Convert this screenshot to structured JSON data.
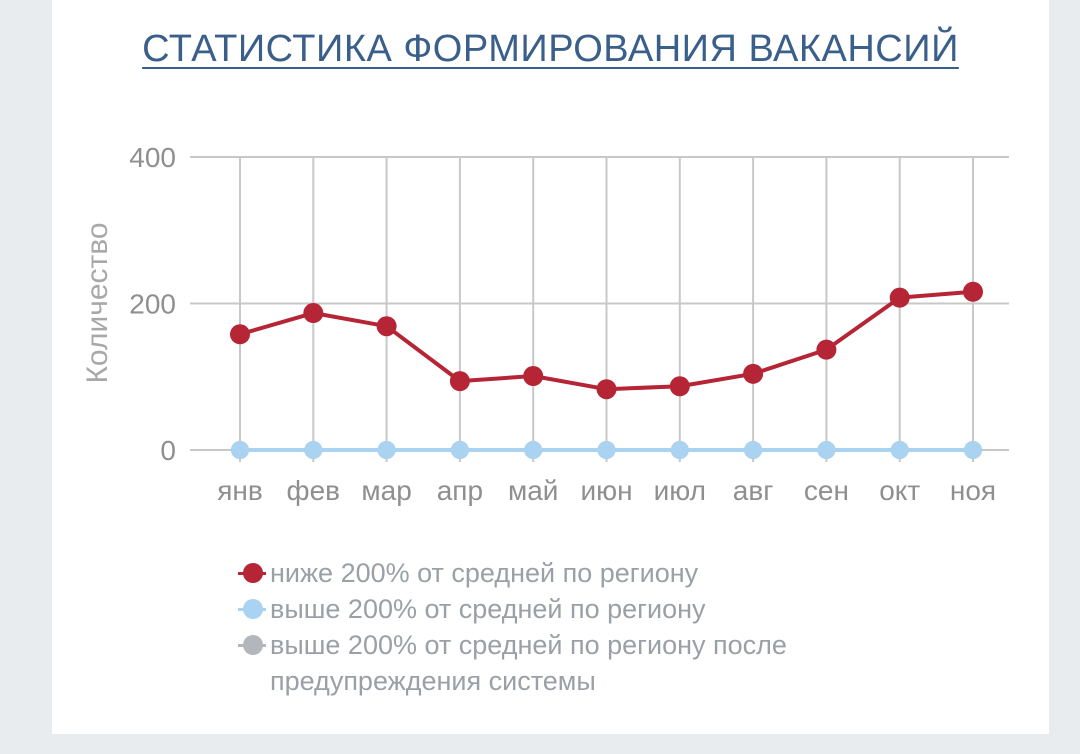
{
  "title": "СТАТИСТИКА ФОРМИРОВАНИЯ ВАКАНСИЙ",
  "chart_data": {
    "type": "line",
    "title": "СТАТИСТИКА ФОРМИРОВАНИЯ ВАКАНСИЙ",
    "xlabel": "",
    "ylabel": "Количество",
    "ylim": [
      0,
      400
    ],
    "yticks": [
      0,
      200,
      400
    ],
    "grid": true,
    "legend_position": "bottom",
    "categories": [
      "янв",
      "фев",
      "мар",
      "апр",
      "май",
      "июн",
      "июл",
      "авг",
      "сен",
      "окт",
      "ноя"
    ],
    "series": [
      {
        "name": "ниже 200% от средней по региону",
        "color": "#b52535",
        "values": [
          158,
          187,
          169,
          94,
          101,
          83,
          87,
          104,
          137,
          208,
          216
        ]
      },
      {
        "name": "выше 200% от средней по региону",
        "color": "#a9d3f0",
        "values": [
          0,
          0,
          0,
          0,
          0,
          0,
          0,
          0,
          0,
          0,
          0
        ]
      },
      {
        "name": "выше 200% от средней по региону после предупреждения системы",
        "color": "#b3b6bb",
        "values": [
          0,
          0,
          0,
          0,
          0,
          0,
          0,
          0,
          0,
          0,
          0
        ]
      }
    ]
  }
}
